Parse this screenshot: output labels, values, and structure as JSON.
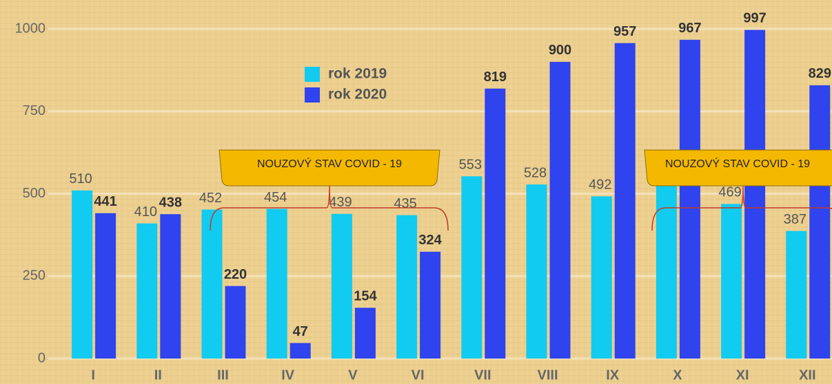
{
  "chart_data": {
    "type": "bar",
    "categories": [
      "I",
      "II",
      "III",
      "IV",
      "V",
      "VI",
      "VII",
      "VIII",
      "IX",
      "X",
      "XI",
      "XII"
    ],
    "series": [
      {
        "name": "rok 2019",
        "color": "#12cbf0",
        "values": [
          510,
          410,
          452,
          454,
          439,
          435,
          553,
          528,
          492,
          550,
          469,
          387
        ],
        "value_labels": [
          "510",
          "410",
          "452",
          "454",
          "439",
          "435",
          "553",
          "528",
          "492",
          null,
          "469",
          "387"
        ]
      },
      {
        "name": "rok 2020",
        "color": "#2f43ee",
        "values": [
          441,
          438,
          220,
          47,
          154,
          324,
          819,
          900,
          957,
          967,
          997,
          829
        ]
      }
    ],
    "ylim": [
      0,
      1000
    ],
    "yticks": [
      0,
      250,
      500,
      750,
      1000
    ],
    "grid": true,
    "annotations": [
      "NOUZOVÝ STAV COVID - 19",
      "NOUZOVÝ STAV COVID - 19"
    ]
  }
}
